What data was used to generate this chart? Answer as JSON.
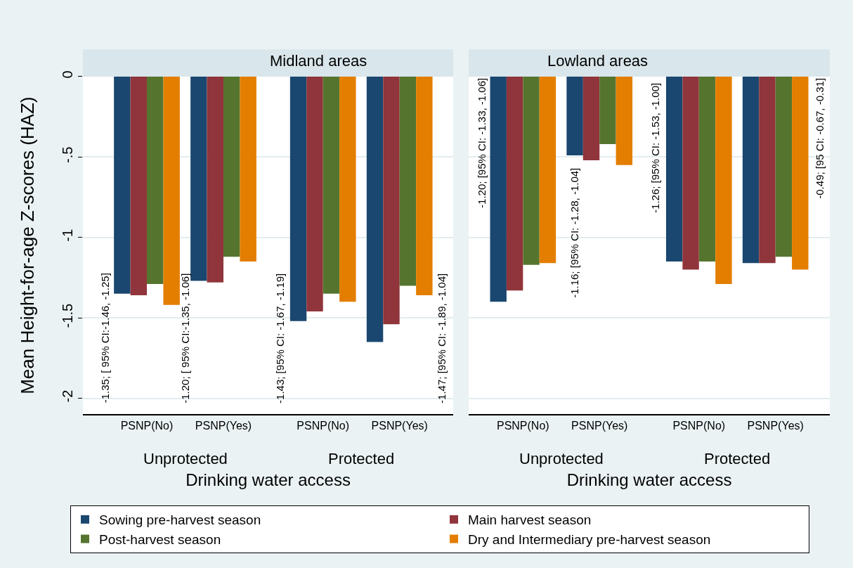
{
  "chart_data": [
    {
      "type": "bar",
      "title": "Midland areas",
      "xlabel": "Drinking water access",
      "ylabel": "Mean Height-for-age Z-scores (HAZ)",
      "categories": [
        "PSNP(No)",
        "PSNP(Yes)",
        "PSNP(No)",
        "PSNP(Yes)"
      ],
      "series": [
        {
          "name": "Sowing pre-harvest season",
          "color": "#1a476f",
          "values": [
            -1.35,
            -1.27,
            -1.52,
            -1.65
          ]
        },
        {
          "name": "Main harvest season",
          "color": "#90353b",
          "values": [
            -1.36,
            -1.28,
            -1.46,
            -1.54
          ]
        },
        {
          "name": "Post-harvest season",
          "color": "#55752f",
          "values": [
            -1.29,
            -1.12,
            -1.35,
            -1.3
          ]
        },
        {
          "name": "Dry and Intermediary pre-harvest season",
          "color": "#e37e00",
          "values": [
            -1.42,
            -1.15,
            -1.4,
            -1.36
          ]
        }
      ],
      "ylim": [
        -2.1,
        0
      ],
      "yticks": [
        0,
        {
          "value": -0.5,
          "label": "-.5"
        },
        -1,
        -1.5,
        -2
      ],
      "grid": "y",
      "legend": "bottom",
      "annotations": [
        "Unprotected",
        "Protected",
        "-1.35; [ 95% CI:-1.46, -1.25]",
        "-1.20; [ 95% CI:-1.35, -1.06]",
        "-1.43; [95% CI: -1.67, -1.19]",
        "-1.47; [95% CI: -1.89, -1.04]"
      ]
    },
    {
      "type": "bar",
      "title": "Lowland areas",
      "xlabel": "Drinking water access",
      "categories": [
        "PSNP(No)",
        "PSNP(Yes)",
        "PSNP(No)",
        "PSNP(Yes)"
      ],
      "series": [
        {
          "color": "#1a476f",
          "values": [
            -1.4,
            -0.49,
            -1.15,
            -1.16
          ]
        },
        {
          "color": "#90353b",
          "values": [
            -1.33,
            -0.52,
            -1.2,
            -1.16
          ]
        },
        {
          "color": "#55752f",
          "values": [
            -1.17,
            -0.42,
            -1.15,
            -1.12
          ]
        },
        {
          "color": "#e37e00",
          "values": [
            -1.16,
            -0.55,
            -1.29,
            -1.2
          ]
        }
      ],
      "ylim": [
        -2.1,
        0
      ],
      "yticks": [
        {
          "value": 0,
          "label": null
        },
        {
          "value": -0.5,
          "label": null
        },
        {
          "value": -1,
          "label": null
        },
        {
          "value": -1.5,
          "label": null
        },
        {
          "value": -2,
          "label": null
        }
      ],
      "grid": "y",
      "tick_labels": "x",
      "annotations": [
        "Unprotected",
        "Protected",
        "-1.20; [95% CI: -1.33, -1.06]",
        "-1.16; [95% CI: -1.28, -1.04]",
        "-1.26; [95% CI: -1.53, -1.00]",
        "-0.49; [95 CI: -0.67, -0.31]"
      ]
    }
  ]
}
